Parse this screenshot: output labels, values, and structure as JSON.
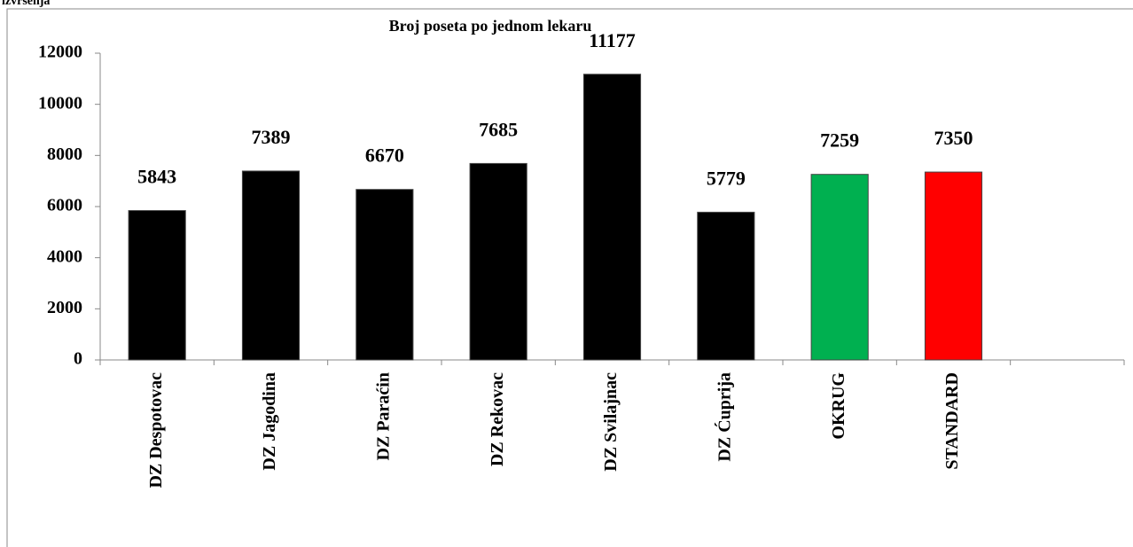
{
  "caption": "izvršenja",
  "chart_data": {
    "type": "bar",
    "title": "Broj poseta po jednom lekaru",
    "categories": [
      "DZ Despotovac",
      "DZ Jagodina",
      "DZ Paraćin",
      "DZ Rekovac",
      "DZ Svilajnac",
      "DZ Ćuprija",
      "OKRUG",
      "STANDARD",
      null
    ],
    "values": [
      5843,
      7389,
      6670,
      7685,
      11177,
      5779,
      7259,
      7350,
      null
    ],
    "colors": [
      "#000000",
      "#000000",
      "#000000",
      "#000000",
      "#000000",
      "#000000",
      "#00b050",
      "#ff0000",
      null
    ],
    "ylim": [
      0,
      12000
    ],
    "yticks": [
      0,
      2000,
      4000,
      6000,
      8000,
      10000,
      12000
    ],
    "grid": false
  }
}
